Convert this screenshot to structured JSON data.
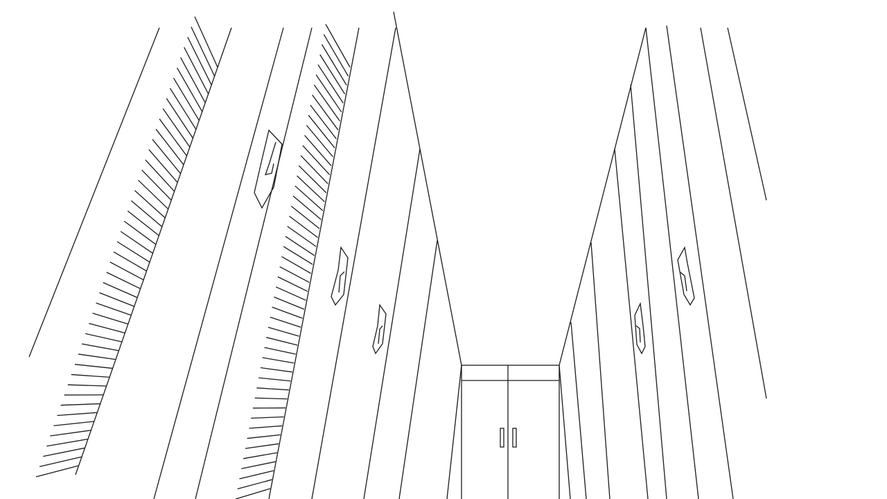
{
  "drawing": {
    "background": "#ffffff",
    "stroke_color": "#1a1a1a",
    "hatch_strips": [
      {
        "name": "left-hatched-strip",
        "hatch_count": 46
      },
      {
        "name": "center-hatched-strip",
        "hatch_count": 48
      }
    ]
  }
}
